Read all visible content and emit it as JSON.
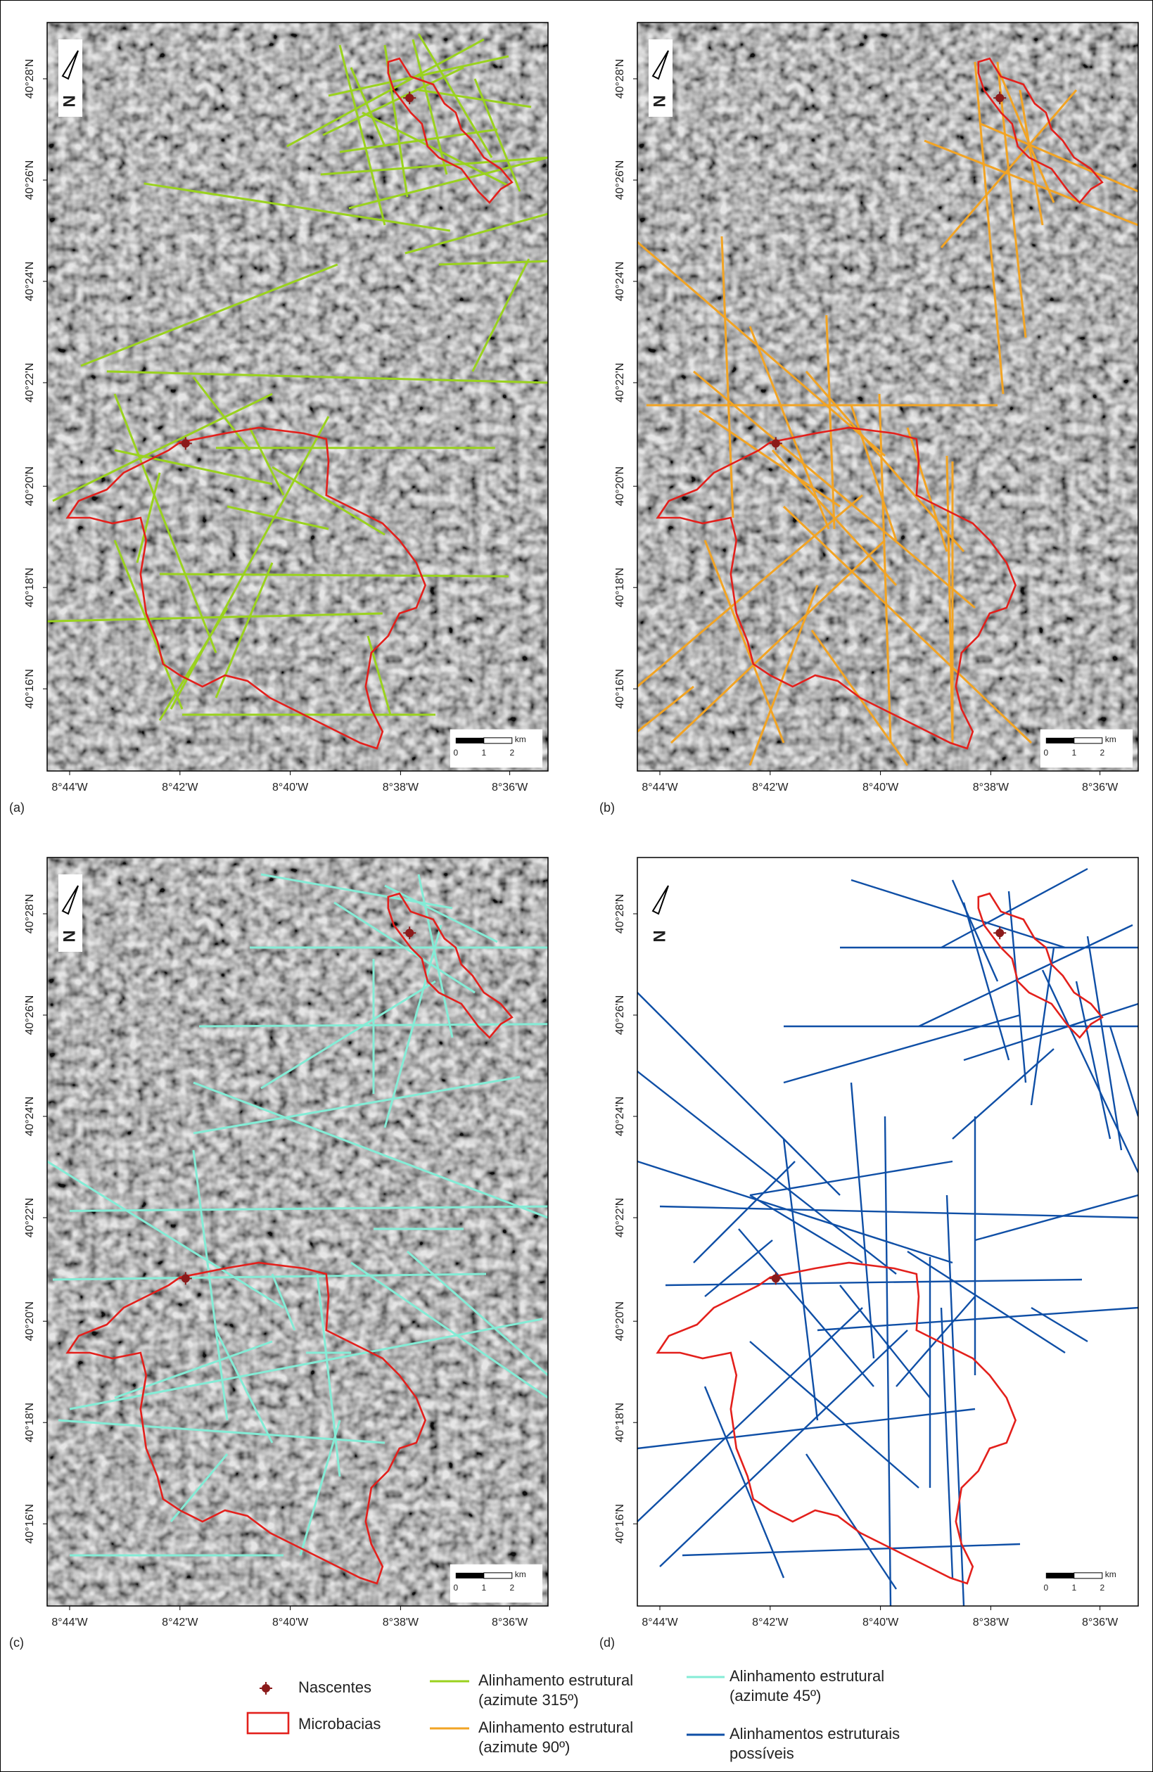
{
  "panels": [
    {
      "label": "(a)"
    },
    {
      "label": "(b)"
    },
    {
      "label": "(c)"
    },
    {
      "label": "(d)"
    }
  ],
  "lat_ticks": [
    "40°28'N",
    "40°26'N",
    "40°24'N",
    "40°22'N",
    "40°20'N",
    "40°18'N",
    "40°16'N"
  ],
  "lon_ticks": [
    "8°44'W",
    "8°42'W",
    "8°40'W",
    "8°38'W",
    "8°36'W"
  ],
  "north": "N",
  "scale": {
    "unit": "km",
    "ticks": [
      "0",
      "1",
      "2"
    ]
  },
  "legend": [
    {
      "label_lines": [
        "Nascentes"
      ]
    },
    {
      "label_lines": [
        "Microbacias"
      ]
    },
    {
      "label_lines": [
        "Alinhamento estrutural",
        "(azimute 315º)"
      ]
    },
    {
      "label_lines": [
        "Alinhamento estrutural",
        "(azimute 90º)"
      ]
    },
    {
      "label_lines": [
        "Alinhamento estrutural",
        "(azimute 45º)"
      ]
    },
    {
      "label_lines": [
        "Alinhamentos estruturais",
        "possíveis"
      ]
    }
  ]
}
